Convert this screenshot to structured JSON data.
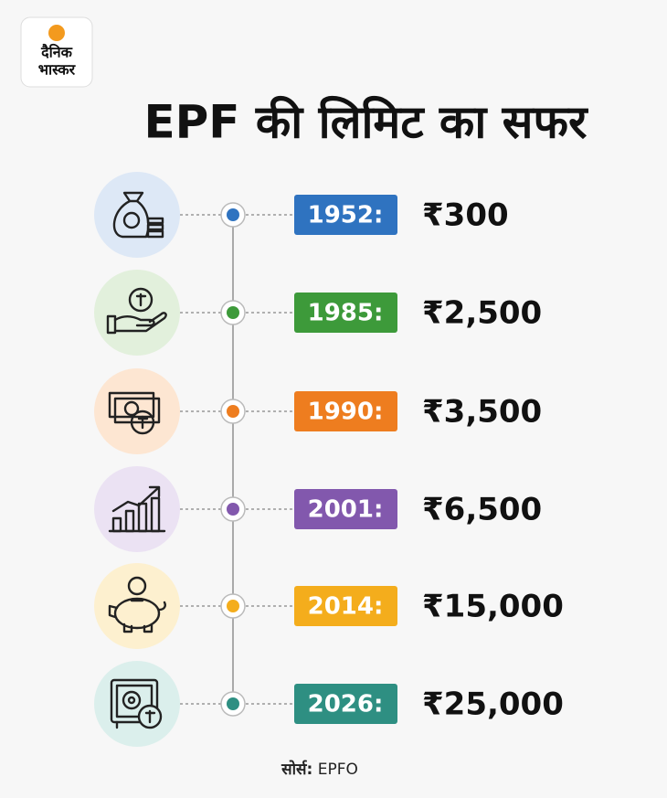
{
  "logo": {
    "line1": "दैनिक",
    "line2": "भास्कर"
  },
  "title": "EPF  की लिमिट का सफर",
  "timeline": [
    {
      "year": "1952:",
      "amount": "₹300",
      "color": "#2f73c0",
      "icon_bg": "#dde8f6"
    },
    {
      "year": "1985:",
      "amount": "₹2,500",
      "color": "#3d9a3a",
      "icon_bg": "#e2f0dc"
    },
    {
      "year": "1990:",
      "amount": "₹3,500",
      "color": "#ee7d1f",
      "icon_bg": "#fde6d2"
    },
    {
      "year": "2001:",
      "amount": "₹6,500",
      "color": "#8258ad",
      "icon_bg": "#ebe2f3"
    },
    {
      "year": "2014:",
      "amount": "₹15,000",
      "color": "#f4ad1c",
      "icon_bg": "#fdf0cf"
    },
    {
      "year": "2026:",
      "amount": "₹25,000",
      "color": "#2e8f82",
      "icon_bg": "#dbefec"
    }
  ],
  "source": {
    "label": "सोर्स:",
    "value": "EPFO"
  }
}
